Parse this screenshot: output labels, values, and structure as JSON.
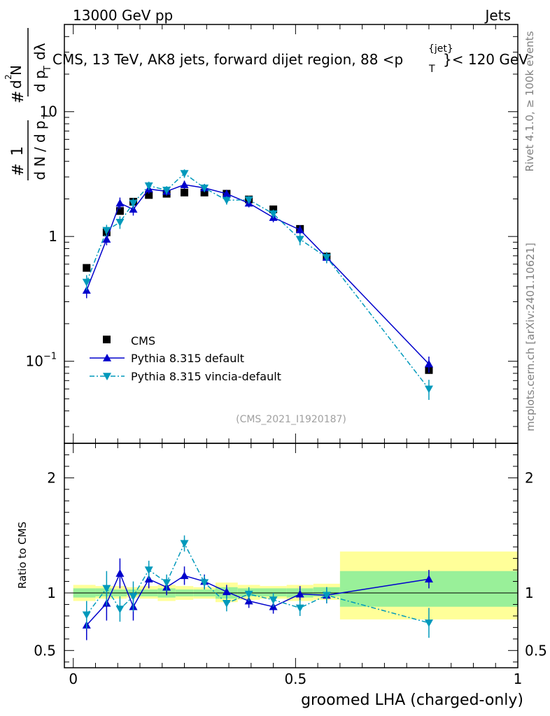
{
  "header": {
    "energy": "13000 GeV pp",
    "process": "Jets",
    "analysis_id": "(CMS_2021_I1920187)",
    "rivet_label": "Rivet 4.1.0, ≥ 100k events",
    "mcplots_label": "mcplots.cern.ch [arXiv:2401.10621]"
  },
  "main_axes": {
    "ylabel_main": "1 / dN/dp_T · d²N / dp_T dλ",
    "ratio_ylabel": "Ratio to CMS",
    "xlabel": "groomed LHA (charged-only)"
  },
  "colors": {
    "data": "#000000",
    "pythia_default": "#0000cc",
    "vincia": "#0099bb",
    "band_inner": "#99f099",
    "band_outer": "#ffff99"
  },
  "chart_data": [
    {
      "type": "scatter",
      "title": "CMS, 13 TeV, AK8 jets, forward dijet region, 88 < p_T^{jet} < 120 GeV",
      "title_main": "CMS, 13 TeV, AK8 jets, forward dijet region, 88 <p",
      "title_sup": "{jet}",
      "title_sub": "T",
      "title_tail": "}< 120 GeV",
      "ylabel": "1/(dN/dp_T) d²N/(dp_T dλ)",
      "yscale": "log",
      "xlim": [
        -0.02,
        1.0
      ],
      "ylim": [
        0.022,
        50
      ],
      "yticks": [
        {
          "value": 0.1,
          "base": "10",
          "exp": "−1"
        },
        {
          "value": 1,
          "label": "1"
        },
        {
          "value": 10,
          "label": "10"
        }
      ],
      "x": [
        0.03,
        0.075,
        0.105,
        0.135,
        0.17,
        0.21,
        0.25,
        0.295,
        0.345,
        0.395,
        0.45,
        0.51,
        0.57,
        0.8
      ],
      "series": [
        {
          "name": "CMS",
          "marker": "square",
          "values": [
            0.56,
            1.08,
            1.6,
            1.9,
            2.15,
            2.2,
            2.25,
            2.25,
            2.2,
            1.98,
            1.65,
            1.15,
            0.69,
            0.085
          ]
        },
        {
          "name": "Pythia 8.315 default",
          "marker": "triangle-up",
          "line": "solid",
          "values": [
            0.37,
            0.95,
            1.85,
            1.65,
            2.4,
            2.3,
            2.6,
            2.45,
            2.2,
            1.85,
            1.42,
            1.13,
            0.68,
            0.095
          ],
          "errors": [
            0.05,
            0.1,
            0.2,
            0.18,
            0.2,
            0.18,
            0.2,
            0.18,
            0.15,
            0.14,
            0.12,
            0.1,
            0.07,
            0.014
          ]
        },
        {
          "name": "Pythia 8.315 vincia-default",
          "marker": "triangle-down",
          "line": "dashdot",
          "values": [
            0.43,
            1.12,
            1.3,
            1.85,
            2.55,
            2.35,
            3.2,
            2.45,
            1.95,
            1.97,
            1.52,
            0.95,
            0.68,
            0.06
          ],
          "errors": [
            0.06,
            0.12,
            0.15,
            0.18,
            0.2,
            0.18,
            0.25,
            0.18,
            0.15,
            0.14,
            0.12,
            0.1,
            0.07,
            0.011
          ]
        }
      ]
    },
    {
      "type": "scatter",
      "title": "Ratio to CMS",
      "ylabel": "Ratio to CMS",
      "xlabel": "groomed LHA (charged-only)",
      "xlim": [
        -0.02,
        1.0
      ],
      "ylim": [
        0.35,
        2.3
      ],
      "xticks": [
        {
          "value": 0,
          "label": "0"
        },
        {
          "value": 0.5,
          "label": "0.5"
        },
        {
          "value": 1,
          "label": "1"
        }
      ],
      "yticks": [
        {
          "value": 0.5,
          "label": "0.5"
        },
        {
          "value": 1,
          "label": "1"
        },
        {
          "value": 2,
          "label": "2"
        }
      ],
      "bands": [
        {
          "x0": 0.0,
          "x1": 0.05,
          "outer": [
            0.93,
            1.07
          ],
          "inner": [
            0.96,
            1.04
          ]
        },
        {
          "x0": 0.05,
          "x1": 0.09,
          "outer": [
            0.95,
            1.06
          ],
          "inner": [
            0.97,
            1.04
          ]
        },
        {
          "x0": 0.09,
          "x1": 0.12,
          "outer": [
            0.95,
            1.06
          ],
          "inner": [
            0.97,
            1.03
          ]
        },
        {
          "x0": 0.12,
          "x1": 0.15,
          "outer": [
            0.96,
            1.05
          ],
          "inner": [
            0.98,
            1.03
          ]
        },
        {
          "x0": 0.15,
          "x1": 0.19,
          "outer": [
            0.95,
            1.06
          ],
          "inner": [
            0.97,
            1.03
          ]
        },
        {
          "x0": 0.19,
          "x1": 0.23,
          "outer": [
            0.93,
            1.07
          ],
          "inner": [
            0.96,
            1.04
          ]
        },
        {
          "x0": 0.23,
          "x1": 0.27,
          "outer": [
            0.94,
            1.06
          ],
          "inner": [
            0.97,
            1.03
          ]
        },
        {
          "x0": 0.27,
          "x1": 0.32,
          "outer": [
            0.95,
            1.05
          ],
          "inner": [
            0.97,
            1.03
          ]
        },
        {
          "x0": 0.32,
          "x1": 0.37,
          "outer": [
            0.92,
            1.09
          ],
          "inner": [
            0.95,
            1.05
          ]
        },
        {
          "x0": 0.37,
          "x1": 0.42,
          "outer": [
            0.94,
            1.07
          ],
          "inner": [
            0.97,
            1.04
          ]
        },
        {
          "x0": 0.42,
          "x1": 0.48,
          "outer": [
            0.95,
            1.06
          ],
          "inner": [
            0.97,
            1.04
          ]
        },
        {
          "x0": 0.48,
          "x1": 0.54,
          "outer": [
            0.93,
            1.07
          ],
          "inner": [
            0.96,
            1.04
          ]
        },
        {
          "x0": 0.54,
          "x1": 0.6,
          "outer": [
            0.94,
            1.08
          ],
          "inner": [
            0.97,
            1.05
          ]
        },
        {
          "x0": 0.6,
          "x1": 1.0,
          "outer": [
            0.77,
            1.36
          ],
          "inner": [
            0.88,
            1.19
          ]
        }
      ],
      "x": [
        0.03,
        0.075,
        0.105,
        0.135,
        0.17,
        0.21,
        0.25,
        0.295,
        0.345,
        0.395,
        0.45,
        0.51,
        0.57,
        0.8
      ],
      "series": [
        {
          "name": "Pythia 8.315 default",
          "marker": "triangle-up",
          "line": "solid",
          "values": [
            0.72,
            0.91,
            1.17,
            0.88,
            1.12,
            1.05,
            1.15,
            1.1,
            1.01,
            0.93,
            0.88,
            0.99,
            0.98,
            1.12
          ],
          "errors": [
            0.13,
            0.15,
            0.13,
            0.12,
            0.08,
            0.07,
            0.08,
            0.06,
            0.06,
            0.06,
            0.06,
            0.07,
            0.07,
            0.08
          ]
        },
        {
          "name": "Pythia 8.315 vincia-default",
          "marker": "triangle-down",
          "line": "dashdot",
          "values": [
            0.81,
            1.04,
            0.86,
            0.97,
            1.2,
            1.09,
            1.43,
            1.09,
            0.91,
            0.99,
            0.94,
            0.87,
            0.98,
            0.74
          ],
          "errors": [
            0.12,
            0.15,
            0.11,
            0.13,
            0.08,
            0.07,
            0.07,
            0.06,
            0.07,
            0.06,
            0.06,
            0.07,
            0.07,
            0.13
          ]
        }
      ]
    }
  ]
}
